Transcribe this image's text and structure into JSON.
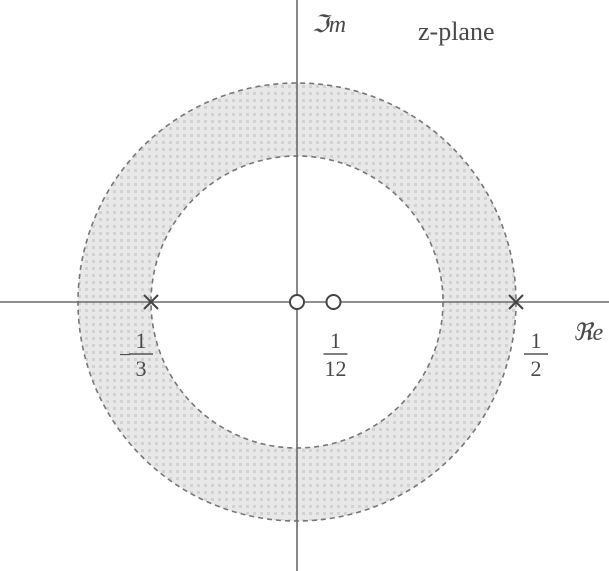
{
  "diagram": {
    "plane_label": "z-plane",
    "axis_imag_label": "ℑm",
    "axis_real_label": "ℜe",
    "roc": {
      "inner_radius": 0.3333,
      "outer_radius": 0.5,
      "shaded": true,
      "boundary_style": "dashed"
    },
    "poles": [
      {
        "value": -0.3333,
        "num": "1",
        "den": "3",
        "sign": "−"
      },
      {
        "value": 0.5,
        "num": "1",
        "den": "2",
        "sign": ""
      }
    ],
    "zeros": [
      {
        "value": 0
      },
      {
        "value": 0.0833,
        "num": "1",
        "den": "12"
      }
    ],
    "colors": {
      "axis": "#6b6b6b",
      "fill": "#e6e6e6",
      "dots": "#cfcfcf",
      "boundary": "#777777",
      "text": "#4a4a4a"
    }
  }
}
